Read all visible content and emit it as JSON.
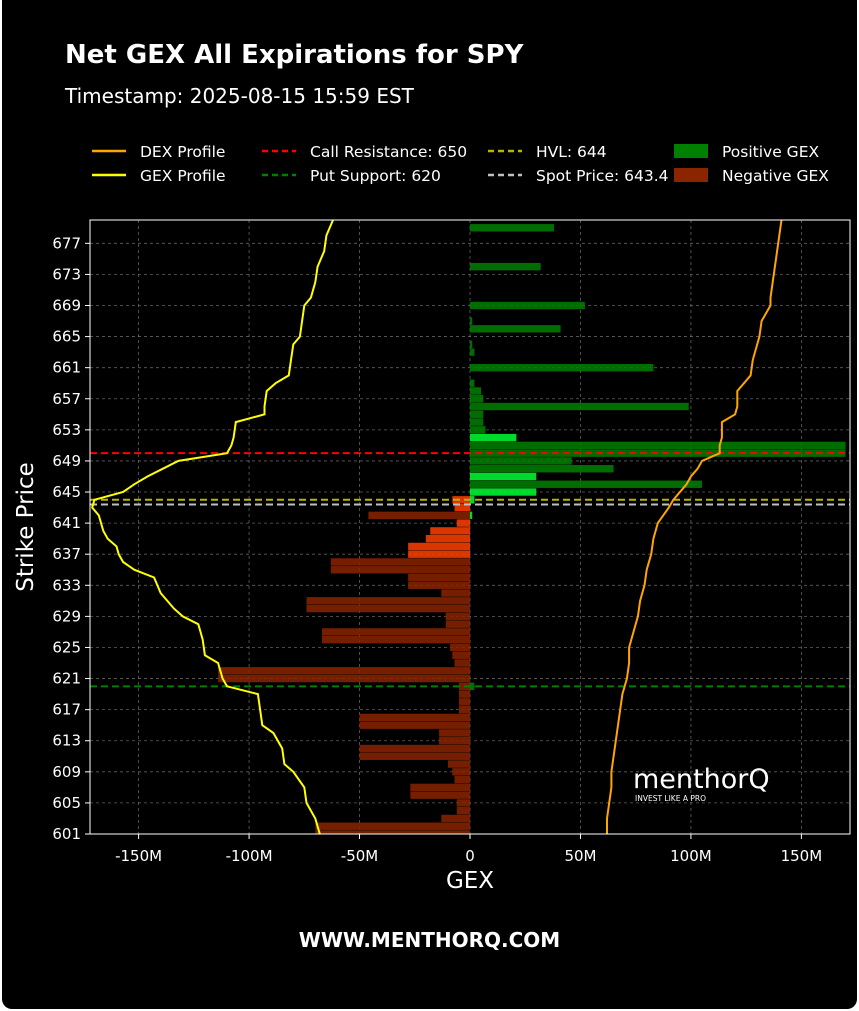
{
  "header": {
    "title": "Net GEX All Expirations for SPY",
    "subtitle": "Timestamp: 2025-08-15 15:59 EST"
  },
  "footer": {
    "website": "WWW.MENTHORQ.COM"
  },
  "logo": {
    "name": "menthorQ",
    "tagline": "INVEST LIKE A PRO"
  },
  "colors": {
    "background": "#000000",
    "positive_gex": "#008000",
    "positive_gex_near": "#00ff33",
    "negative_gex": "#8b2500",
    "negative_gex_near": "#ff4000",
    "dex_line": "#ffa500",
    "gex_line": "#ffff00",
    "call_resistance": "#ff0000",
    "put_support": "#008000",
    "hvl": "#b5b500",
    "spot_price": "#c0c0c0"
  },
  "chart_data": {
    "type": "bar",
    "orientation": "horizontal",
    "xlabel": "GEX",
    "ylabel": "Strike Price",
    "xlim": [
      -172,
      172
    ],
    "ylim": [
      601,
      680
    ],
    "x_unit": "M",
    "xticks": [
      -150,
      -100,
      -50,
      0,
      50,
      100,
      150
    ],
    "xtick_labels": [
      "-150M",
      "-100M",
      "-50M",
      "0",
      "50M",
      "100M",
      "150M"
    ],
    "yticks": [
      601,
      605,
      609,
      613,
      617,
      621,
      625,
      629,
      633,
      637,
      641,
      645,
      649,
      653,
      657,
      661,
      665,
      669,
      673,
      677
    ],
    "grid": true,
    "legend": {
      "placement": "top",
      "entries": [
        {
          "label": "DEX Profile",
          "kind": "line",
          "color": "#ffa500",
          "dash": false
        },
        {
          "label": "Call Resistance: 650",
          "kind": "line",
          "color": "#ff0000",
          "dash": true
        },
        {
          "label": "HVL: 644",
          "kind": "line",
          "color": "#b5b500",
          "dash": true
        },
        {
          "label": "Positive GEX",
          "kind": "patch",
          "color": "#008000"
        },
        {
          "label": "GEX Profile",
          "kind": "line",
          "color": "#ffff00",
          "dash": false
        },
        {
          "label": "Put Support: 620",
          "kind": "line",
          "color": "#008000",
          "dash": true
        },
        {
          "label": "Spot Price: 643.4",
          "kind": "line",
          "color": "#c0c0c0",
          "dash": true
        },
        {
          "label": "Negative GEX",
          "kind": "patch",
          "color": "#8b2500"
        }
      ]
    },
    "levels": {
      "call_resistance": 650,
      "put_support": 620,
      "hvl": 644,
      "spot_price": 643.4
    },
    "series": [
      {
        "name": "Positive GEX",
        "bars": [
          {
            "strike": 679,
            "value": 38
          },
          {
            "strike": 674,
            "value": 32
          },
          {
            "strike": 669,
            "value": 52
          },
          {
            "strike": 667,
            "value": 1
          },
          {
            "strike": 666,
            "value": 41
          },
          {
            "strike": 664,
            "value": 1
          },
          {
            "strike": 663,
            "value": 2
          },
          {
            "strike": 661,
            "value": 83
          },
          {
            "strike": 659,
            "value": 2
          },
          {
            "strike": 658,
            "value": 5
          },
          {
            "strike": 657,
            "value": 6
          },
          {
            "strike": 656,
            "value": 99
          },
          {
            "strike": 655,
            "value": 6
          },
          {
            "strike": 654,
            "value": 6
          },
          {
            "strike": 653,
            "value": 7
          },
          {
            "strike": 652,
            "value": 21
          },
          {
            "strike": 651,
            "value": 170
          },
          {
            "strike": 650,
            "value": 170
          },
          {
            "strike": 649,
            "value": 46
          },
          {
            "strike": 648,
            "value": 65
          },
          {
            "strike": 647,
            "value": 30
          },
          {
            "strike": 646,
            "value": 105
          },
          {
            "strike": 645,
            "value": 30
          },
          {
            "strike": 644,
            "value": 2
          },
          {
            "strike": 642,
            "value": 1
          },
          {
            "strike": 620,
            "value": 2
          }
        ]
      },
      {
        "name": "Negative GEX",
        "bars": [
          {
            "strike": 644,
            "value": -8
          },
          {
            "strike": 643,
            "value": -7
          },
          {
            "strike": 642,
            "value": -46
          },
          {
            "strike": 641,
            "value": -6
          },
          {
            "strike": 640,
            "value": -18
          },
          {
            "strike": 639,
            "value": -20
          },
          {
            "strike": 638,
            "value": -28
          },
          {
            "strike": 637,
            "value": -28
          },
          {
            "strike": 636,
            "value": -63
          },
          {
            "strike": 635,
            "value": -63
          },
          {
            "strike": 634,
            "value": -28
          },
          {
            "strike": 633,
            "value": -28
          },
          {
            "strike": 632,
            "value": -13
          },
          {
            "strike": 631,
            "value": -74
          },
          {
            "strike": 630,
            "value": -74
          },
          {
            "strike": 629,
            "value": -11
          },
          {
            "strike": 628,
            "value": -11
          },
          {
            "strike": 627,
            "value": -67
          },
          {
            "strike": 626,
            "value": -67
          },
          {
            "strike": 625,
            "value": -9
          },
          {
            "strike": 624,
            "value": -8
          },
          {
            "strike": 623,
            "value": -7
          },
          {
            "strike": 622,
            "value": -114
          },
          {
            "strike": 621,
            "value": -114
          },
          {
            "strike": 620,
            "value": -5
          },
          {
            "strike": 619,
            "value": -5
          },
          {
            "strike": 618,
            "value": -5
          },
          {
            "strike": 617,
            "value": -5
          },
          {
            "strike": 616,
            "value": -50
          },
          {
            "strike": 615,
            "value": -50
          },
          {
            "strike": 614,
            "value": -14
          },
          {
            "strike": 613,
            "value": -14
          },
          {
            "strike": 612,
            "value": -50
          },
          {
            "strike": 611,
            "value": -50
          },
          {
            "strike": 610,
            "value": -10
          },
          {
            "strike": 609,
            "value": -8
          },
          {
            "strike": 608,
            "value": -7
          },
          {
            "strike": 607,
            "value": -27
          },
          {
            "strike": 606,
            "value": -27
          },
          {
            "strike": 605,
            "value": -6
          },
          {
            "strike": 604,
            "value": -6
          },
          {
            "strike": 603,
            "value": -13
          },
          {
            "strike": 602,
            "value": -70
          },
          {
            "strike": 601,
            "value": -70
          }
        ]
      },
      {
        "name": "GEX Profile",
        "points": [
          {
            "strike": 601,
            "value": -68
          },
          {
            "strike": 603,
            "value": -70
          },
          {
            "strike": 605,
            "value": -74
          },
          {
            "strike": 607,
            "value": -75
          },
          {
            "strike": 609,
            "value": -80
          },
          {
            "strike": 610,
            "value": -84
          },
          {
            "strike": 612,
            "value": -85
          },
          {
            "strike": 614,
            "value": -89
          },
          {
            "strike": 615,
            "value": -94
          },
          {
            "strike": 617,
            "value": -95
          },
          {
            "strike": 619,
            "value": -96
          },
          {
            "strike": 620,
            "value": -110
          },
          {
            "strike": 621,
            "value": -112
          },
          {
            "strike": 623,
            "value": -114
          },
          {
            "strike": 624,
            "value": -120
          },
          {
            "strike": 626,
            "value": -121
          },
          {
            "strike": 627,
            "value": -122
          },
          {
            "strike": 628,
            "value": -123
          },
          {
            "strike": 629,
            "value": -130
          },
          {
            "strike": 630,
            "value": -134
          },
          {
            "strike": 632,
            "value": -140
          },
          {
            "strike": 634,
            "value": -143
          },
          {
            "strike": 635,
            "value": -152
          },
          {
            "strike": 636,
            "value": -157
          },
          {
            "strike": 637,
            "value": -159
          },
          {
            "strike": 638,
            "value": -160
          },
          {
            "strike": 639,
            "value": -164
          },
          {
            "strike": 640,
            "value": -166
          },
          {
            "strike": 642,
            "value": -168
          },
          {
            "strike": 643,
            "value": -171
          },
          {
            "strike": 644,
            "value": -170
          },
          {
            "strike": 645,
            "value": -157
          },
          {
            "strike": 646,
            "value": -152
          },
          {
            "strike": 647,
            "value": -146
          },
          {
            "strike": 648,
            "value": -139
          },
          {
            "strike": 649,
            "value": -132
          },
          {
            "strike": 650,
            "value": -110
          },
          {
            "strike": 651,
            "value": -108
          },
          {
            "strike": 652,
            "value": -107
          },
          {
            "strike": 654,
            "value": -106
          },
          {
            "strike": 655,
            "value": -93
          },
          {
            "strike": 656,
            "value": -93
          },
          {
            "strike": 658,
            "value": -92
          },
          {
            "strike": 659,
            "value": -88
          },
          {
            "strike": 660,
            "value": -82
          },
          {
            "strike": 662,
            "value": -81
          },
          {
            "strike": 664,
            "value": -80
          },
          {
            "strike": 665,
            "value": -77
          },
          {
            "strike": 667,
            "value": -76
          },
          {
            "strike": 669,
            "value": -75
          },
          {
            "strike": 670,
            "value": -72
          },
          {
            "strike": 672,
            "value": -70
          },
          {
            "strike": 674,
            "value": -69
          },
          {
            "strike": 676,
            "value": -66
          },
          {
            "strike": 678,
            "value": -65
          },
          {
            "strike": 680,
            "value": -62
          }
        ]
      },
      {
        "name": "DEX Profile",
        "points": [
          {
            "strike": 601,
            "value": 62
          },
          {
            "strike": 603,
            "value": 62
          },
          {
            "strike": 605,
            "value": 63
          },
          {
            "strike": 607,
            "value": 64
          },
          {
            "strike": 609,
            "value": 64
          },
          {
            "strike": 611,
            "value": 65
          },
          {
            "strike": 613,
            "value": 66
          },
          {
            "strike": 615,
            "value": 67
          },
          {
            "strike": 617,
            "value": 68
          },
          {
            "strike": 619,
            "value": 69
          },
          {
            "strike": 621,
            "value": 71
          },
          {
            "strike": 623,
            "value": 72
          },
          {
            "strike": 625,
            "value": 72
          },
          {
            "strike": 627,
            "value": 74
          },
          {
            "strike": 629,
            "value": 76
          },
          {
            "strike": 631,
            "value": 77
          },
          {
            "strike": 633,
            "value": 79
          },
          {
            "strike": 635,
            "value": 80
          },
          {
            "strike": 637,
            "value": 82
          },
          {
            "strike": 639,
            "value": 83
          },
          {
            "strike": 641,
            "value": 85
          },
          {
            "strike": 643,
            "value": 90
          },
          {
            "strike": 644,
            "value": 92
          },
          {
            "strike": 646,
            "value": 98
          },
          {
            "strike": 647,
            "value": 100
          },
          {
            "strike": 648,
            "value": 103
          },
          {
            "strike": 649,
            "value": 105
          },
          {
            "strike": 650,
            "value": 113
          },
          {
            "strike": 651,
            "value": 113
          },
          {
            "strike": 652,
            "value": 114
          },
          {
            "strike": 654,
            "value": 114
          },
          {
            "strike": 655,
            "value": 120
          },
          {
            "strike": 656,
            "value": 121
          },
          {
            "strike": 658,
            "value": 121
          },
          {
            "strike": 659,
            "value": 124
          },
          {
            "strike": 660,
            "value": 127
          },
          {
            "strike": 662,
            "value": 128
          },
          {
            "strike": 664,
            "value": 130
          },
          {
            "strike": 665,
            "value": 131
          },
          {
            "strike": 667,
            "value": 132
          },
          {
            "strike": 669,
            "value": 136
          },
          {
            "strike": 670,
            "value": 136
          },
          {
            "strike": 672,
            "value": 137
          },
          {
            "strike": 674,
            "value": 138
          },
          {
            "strike": 676,
            "value": 139
          },
          {
            "strike": 678,
            "value": 140
          },
          {
            "strike": 680,
            "value": 141
          }
        ]
      }
    ]
  }
}
